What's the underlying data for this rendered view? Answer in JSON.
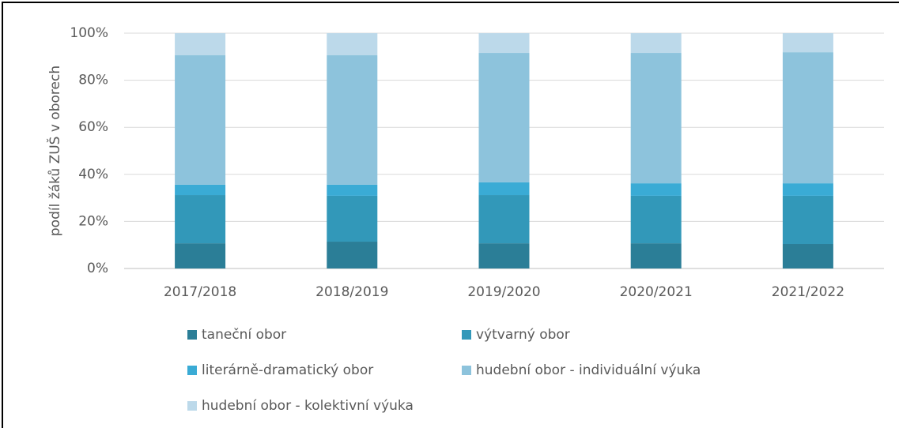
{
  "chart_data": {
    "type": "stacked_bar",
    "y_label": "podíl žáků ZUŠ v oborech",
    "categories": [
      "2017/2018",
      "2018/2019",
      "2019/2020",
      "2020/2021",
      "2021/2022"
    ],
    "series": [
      {
        "name": "taneční obor",
        "color": "#2b7e97",
        "values": [
          10.7,
          11.4,
          10.7,
          10.7,
          10.4
        ]
      },
      {
        "name": "výtvarný obor",
        "color": "#3298b9",
        "values": [
          20.5,
          19.5,
          20.5,
          20.2,
          20.5
        ]
      },
      {
        "name": "literárně-dramatický obor",
        "color": "#3aabd5",
        "values": [
          4.4,
          4.7,
          5.4,
          5.3,
          5.3
        ]
      },
      {
        "name": "hudební obor - individuální výuka",
        "color": "#8dc3dc",
        "values": [
          55,
          55,
          55,
          55.4,
          55.7
        ]
      },
      {
        "name": "hudební obor - kolektivní výuka",
        "color": "#bcd9ea",
        "values": [
          9.4,
          9.4,
          8.4,
          8.4,
          8.1
        ]
      }
    ],
    "ylim": [
      0,
      100
    ],
    "yticks": [
      {
        "value": 0,
        "label": "0%"
      },
      {
        "value": 20,
        "label": "20%"
      },
      {
        "value": 40,
        "label": "40%"
      },
      {
        "value": 60,
        "label": "60%"
      },
      {
        "value": 80,
        "label": "80%"
      },
      {
        "value": 100,
        "label": "100%"
      }
    ],
    "grid": true
  }
}
